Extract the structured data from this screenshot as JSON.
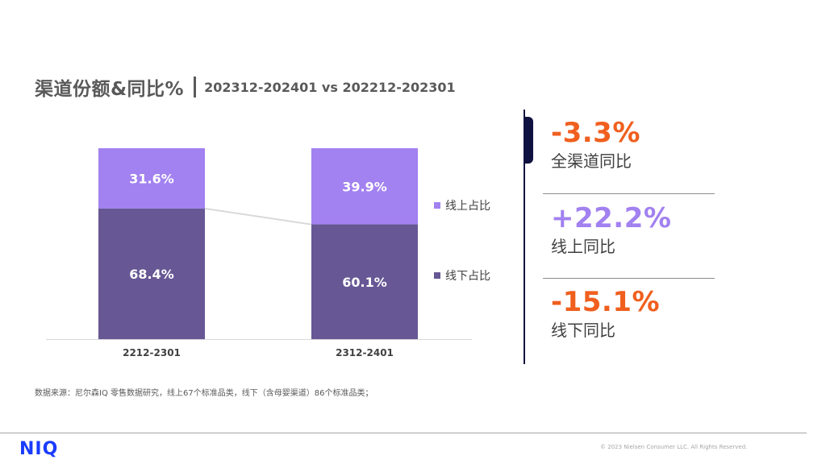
{
  "title": {
    "main": "渠道份额&同比%",
    "sub": "202312-202401 vs 202212-202301"
  },
  "colors": {
    "online": "#a281f0",
    "offline": "#675794",
    "negative": "#f05f1e",
    "positive": "#a281f0",
    "navy": "#0f1140",
    "brand": "#1a3cff"
  },
  "chart_data": {
    "type": "bar",
    "stacked": true,
    "normalized": true,
    "categories": [
      "2212-2301",
      "2312-2401"
    ],
    "series": [
      {
        "name": "线下占比",
        "values": [
          68.4,
          60.1
        ],
        "labels": [
          "68.4%",
          "60.1%"
        ],
        "color": "#675794"
      },
      {
        "name": "线上占比",
        "values": [
          31.6,
          39.9
        ],
        "labels": [
          "31.6%",
          "39.9%"
        ],
        "color": "#a281f0"
      }
    ],
    "ylim": [
      0,
      100
    ],
    "connector_line": true,
    "legend": [
      "线上占比",
      "线下占比"
    ],
    "legend_position": "right"
  },
  "kpis": [
    {
      "value": "-3.3%",
      "label": "全渠道同比",
      "color": "#f05f1e"
    },
    {
      "value": "+22.2%",
      "label": "线上同比",
      "color": "#a281f0"
    },
    {
      "value": "-15.1%",
      "label": "线下同比",
      "color": "#f05f1e"
    }
  ],
  "source": "数据来源：尼尔森IQ 零售数据研究，线上67个标准品类，线下（含母婴渠道）86个标准品类；",
  "footer": {
    "logo": "NIQ",
    "copyright": "© 2023 Nielsen Consumer LLC. All Rights Reserved."
  }
}
